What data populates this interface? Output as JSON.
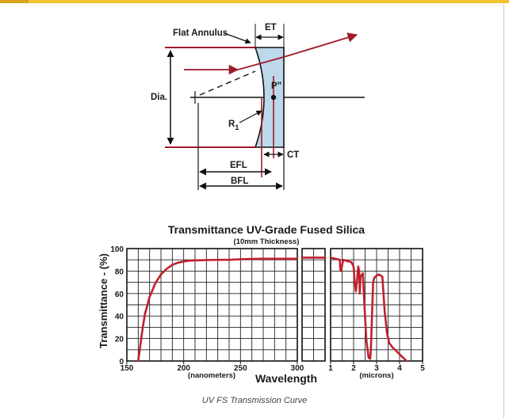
{
  "diagram": {
    "flat_annulus": "Flat Annulus",
    "et": "ET",
    "dia": "Dia.",
    "p_point": "P\"",
    "r_letter": "R",
    "r_sub": "1",
    "ct": "CT",
    "efl": "EFL",
    "bfl": "BFL"
  },
  "chart_data": {
    "type": "line",
    "title": "Transmittance UV-Grade Fused Silica",
    "subtitle": "(10mm Thickness)",
    "ylabel": "Transmittance - (%)",
    "xlabel": "Wavelength",
    "x_unit_nm": "(nanometers)",
    "x_unit_um": "(microns)",
    "ylim": [
      0,
      100
    ],
    "y_ticks": [
      "0",
      "20",
      "40",
      "60",
      "80",
      "100"
    ],
    "grid": true,
    "color": "#c0202e",
    "panels": [
      {
        "name": "nm",
        "xlim": [
          150,
          300
        ],
        "x_ticks": [
          "150",
          "200",
          "250",
          "300"
        ],
        "x": [
          160,
          162,
          164,
          166,
          170,
          175,
          180,
          185,
          190,
          195,
          200,
          205,
          210,
          220,
          230,
          240,
          250,
          260,
          270,
          280,
          290,
          300
        ],
        "y": [
          0,
          15,
          30,
          42,
          57,
          69,
          77,
          82,
          85.5,
          87.5,
          88.5,
          89.3,
          89.5,
          89.8,
          90,
          90,
          90.5,
          90.8,
          91,
          91,
          91,
          91
        ]
      },
      {
        "name": "mid",
        "xlim": [
          0,
          1
        ],
        "x_ticks": [],
        "x": [
          0,
          1
        ],
        "y": [
          92,
          92
        ]
      },
      {
        "name": "microns",
        "xlim": [
          1,
          5
        ],
        "x_ticks": [
          "1",
          "2",
          "3",
          "4",
          "5"
        ],
        "x": [
          1,
          1.2,
          1.4,
          1.42,
          1.45,
          1.5,
          1.55,
          1.7,
          1.9,
          2.0,
          2.05,
          2.1,
          2.15,
          2.2,
          2.24,
          2.27,
          2.3,
          2.4,
          2.55,
          2.65,
          2.72,
          2.75,
          2.8,
          2.85,
          2.9,
          3.0,
          3.1,
          3.25,
          3.35,
          3.45,
          3.55,
          3.7,
          3.9,
          4.1,
          4.3
        ],
        "y": [
          92,
          91,
          90,
          82,
          80,
          85,
          90,
          89,
          88,
          84,
          70,
          62,
          72,
          84,
          80,
          60,
          75,
          78,
          20,
          3,
          2,
          10,
          40,
          70,
          74,
          76,
          77,
          75,
          45,
          25,
          16,
          12,
          8,
          4,
          0
        ]
      }
    ]
  },
  "caption": "UV FS Transmission Curve"
}
